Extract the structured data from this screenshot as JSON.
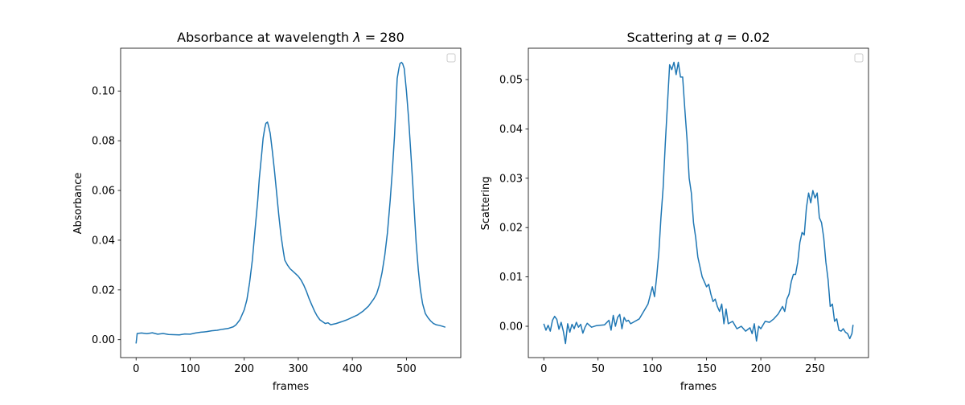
{
  "chart_data": [
    {
      "type": "line",
      "title_prefix": "Absorbance at wavelength ",
      "title_var": "λ",
      "title_suffix": " = 280",
      "xlabel": "frames",
      "ylabel": "Absorbance",
      "xlim": [
        -28.6,
        600.6
      ],
      "ylim": [
        -0.0072,
        0.1172
      ],
      "xticks": [
        0,
        100,
        200,
        300,
        400,
        500
      ],
      "xtick_labels": [
        "0",
        "100",
        "200",
        "300",
        "400",
        "500"
      ],
      "yticks": [
        0,
        0.02,
        0.04,
        0.06,
        0.08,
        0.1
      ],
      "ytick_labels": [
        "0.00",
        "0.02",
        "0.04",
        "0.06",
        "0.08",
        "0.10"
      ],
      "grid": false,
      "legend": "top-right (empty)",
      "color": "#1f77b4",
      "series": [
        {
          "name": "absorbance",
          "x": [
            0,
            2,
            10,
            20,
            30,
            40,
            50,
            60,
            70,
            80,
            90,
            100,
            110,
            120,
            130,
            140,
            150,
            160,
            170,
            180,
            185,
            192,
            200,
            205,
            210,
            215,
            220,
            225,
            228,
            232,
            235,
            238,
            240,
            243,
            245,
            248,
            252,
            256,
            260,
            264,
            268,
            272,
            275,
            280,
            285,
            290,
            295,
            300,
            305,
            310,
            315,
            320,
            325,
            330,
            335,
            340,
            345,
            350,
            355,
            360,
            370,
            380,
            390,
            400,
            410,
            420,
            430,
            440,
            445,
            450,
            455,
            460,
            465,
            470,
            474,
            478,
            481,
            483,
            486,
            488,
            491,
            493,
            496,
            500,
            504,
            508,
            512,
            515,
            518,
            522,
            526,
            530,
            535,
            540,
            545,
            550,
            555,
            560,
            565,
            572
          ],
          "y": [
            -0.0015,
            0.0025,
            0.0027,
            0.0024,
            0.0028,
            0.0022,
            0.0025,
            0.0021,
            0.002,
            0.0019,
            0.0023,
            0.0022,
            0.0027,
            0.003,
            0.0032,
            0.0036,
            0.0038,
            0.0042,
            0.0045,
            0.0052,
            0.006,
            0.008,
            0.012,
            0.016,
            0.023,
            0.032,
            0.044,
            0.056,
            0.065,
            0.074,
            0.081,
            0.085,
            0.087,
            0.0875,
            0.086,
            0.083,
            0.076,
            0.068,
            0.059,
            0.05,
            0.042,
            0.036,
            0.032,
            0.03,
            0.0285,
            0.0275,
            0.0265,
            0.0255,
            0.024,
            0.022,
            0.0195,
            0.0165,
            0.014,
            0.0115,
            0.0095,
            0.008,
            0.0072,
            0.0065,
            0.0068,
            0.006,
            0.0065,
            0.0072,
            0.008,
            0.009,
            0.01,
            0.0115,
            0.0135,
            0.0165,
            0.0185,
            0.022,
            0.027,
            0.034,
            0.043,
            0.056,
            0.068,
            0.082,
            0.096,
            0.105,
            0.109,
            0.111,
            0.1115,
            0.111,
            0.109,
            0.1,
            0.089,
            0.076,
            0.062,
            0.05,
            0.039,
            0.028,
            0.02,
            0.0145,
            0.0105,
            0.0088,
            0.0075,
            0.0065,
            0.006,
            0.0058,
            0.0055,
            0.005
          ]
        }
      ]
    },
    {
      "type": "line",
      "title_prefix": "Scattering at ",
      "title_var": "q",
      "title_suffix": " = 0.02",
      "xlabel": "frames",
      "ylabel": "Scattering",
      "xlim": [
        -14.25,
        299.25
      ],
      "ylim": [
        -0.00635,
        0.05635
      ],
      "xticks": [
        0,
        50,
        100,
        150,
        200,
        250
      ],
      "xtick_labels": [
        "0",
        "50",
        "100",
        "150",
        "200",
        "250"
      ],
      "yticks": [
        0,
        0.01,
        0.02,
        0.03,
        0.04,
        0.05
      ],
      "ytick_labels": [
        "0.00",
        "0.01",
        "0.02",
        "0.03",
        "0.04",
        "0.05"
      ],
      "grid": false,
      "legend": "top-right (empty)",
      "color": "#1f77b4",
      "series": [
        {
          "name": "scattering",
          "x": [
            0,
            2,
            4,
            6,
            8,
            10,
            12,
            14,
            16,
            18,
            20,
            22,
            24,
            26,
            28,
            30,
            32,
            34,
            36,
            38,
            40,
            44,
            48,
            52,
            56,
            60,
            62,
            64,
            66,
            68,
            70,
            72,
            74,
            76,
            78,
            80,
            84,
            88,
            92,
            96,
            100,
            102,
            104,
            106,
            108,
            110,
            112,
            114,
            116,
            118,
            120,
            122,
            124,
            126,
            128,
            130,
            132,
            134,
            136,
            138,
            140,
            142,
            144,
            146,
            148,
            150,
            152,
            154,
            156,
            158,
            160,
            162,
            164,
            166,
            168,
            170,
            174,
            178,
            182,
            186,
            190,
            192,
            194,
            196,
            198,
            200,
            204,
            208,
            212,
            216,
            220,
            222,
            224,
            226,
            228,
            230,
            232,
            234,
            236,
            238,
            240,
            242,
            244,
            246,
            248,
            250,
            252,
            254,
            256,
            258,
            260,
            262,
            264,
            266,
            268,
            270,
            272,
            274,
            276,
            278,
            280,
            282,
            284,
            285
          ],
          "y": [
            0.0005,
            -0.0008,
            0.0002,
            -0.001,
            0.0012,
            0.002,
            0.0014,
            -0.0006,
            0.0008,
            -0.001,
            -0.0035,
            0.0005,
            -0.0012,
            0.0004,
            -0.0005,
            0.0008,
            -0.0002,
            0.0004,
            -0.0014,
            -0.0002,
            0.0006,
            -0.0002,
            0.0001,
            0.0002,
            0.0003,
            0.0012,
            -0.0008,
            0.0022,
            0.0,
            0.0018,
            0.0024,
            -0.0005,
            0.0018,
            0.001,
            0.0012,
            0.0005,
            0.001,
            0.0015,
            0.003,
            0.0045,
            0.008,
            0.006,
            0.01,
            0.015,
            0.022,
            0.028,
            0.037,
            0.045,
            0.053,
            0.052,
            0.0535,
            0.051,
            0.0535,
            0.0505,
            0.0505,
            0.044,
            0.038,
            0.03,
            0.027,
            0.021,
            0.018,
            0.014,
            0.012,
            0.01,
            0.009,
            0.008,
            0.0085,
            0.0065,
            0.005,
            0.0055,
            0.004,
            0.003,
            0.0045,
            0.0005,
            0.0035,
            0.0005,
            0.001,
            -0.0005,
            0.0,
            -0.001,
            -0.0003,
            -0.0015,
            0.0005,
            -0.003,
            0.0,
            -0.0005,
            0.001,
            0.0008,
            0.0015,
            0.0025,
            0.004,
            0.003,
            0.0055,
            0.0065,
            0.009,
            0.0105,
            0.0105,
            0.013,
            0.017,
            0.019,
            0.0185,
            0.024,
            0.027,
            0.025,
            0.0275,
            0.026,
            0.027,
            0.022,
            0.021,
            0.018,
            0.013,
            0.0095,
            0.004,
            0.0045,
            0.001,
            0.0015,
            -0.0008,
            -0.001,
            -0.0005,
            -0.0012,
            -0.0015,
            -0.0025,
            -0.0015,
            0.0003
          ]
        }
      ]
    }
  ]
}
